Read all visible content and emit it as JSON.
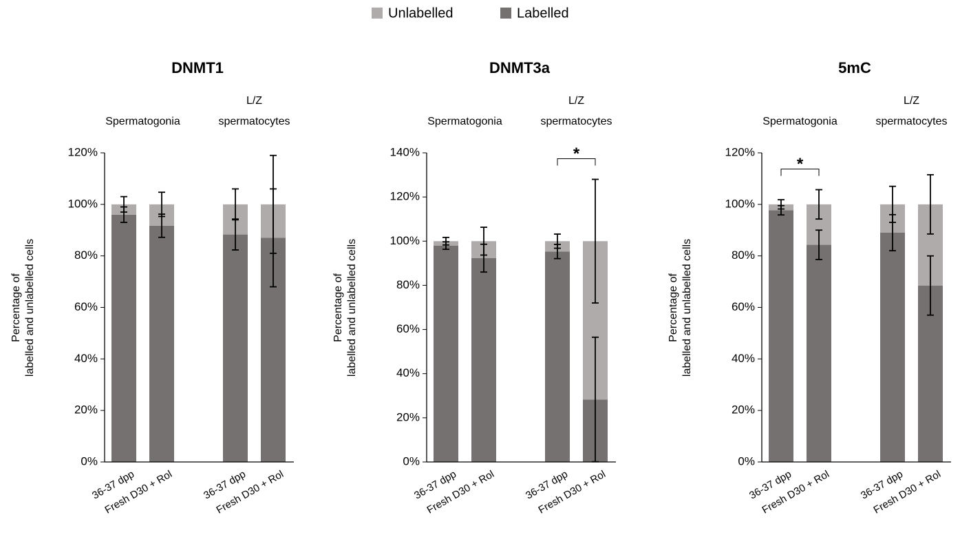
{
  "chart_data": [
    {
      "type": "stacked_bar",
      "title": "DNMT1",
      "y_label": "Percentage of\nlabelled and unlabelled cells",
      "group_labels": [
        "Spermatogonia",
        "L/Z\nspermatocytes"
      ],
      "categories": [
        "36-37 dpp",
        "Fresh D30 + Rol",
        "36-37 dpp",
        "Fresh D30 + Rol"
      ],
      "series": [
        {
          "name": "Labelled",
          "color": "#767171",
          "values": [
            96,
            91.7,
            88.3,
            87
          ],
          "errors": [
            3,
            4.5,
            6,
            19
          ]
        },
        {
          "name": "Unlabelled",
          "color": "#afabab",
          "values": [
            4,
            8.3,
            11.7,
            13
          ],
          "errors": [
            3,
            4.7,
            6,
            19
          ]
        }
      ],
      "significance": [
        null,
        null,
        null,
        null
      ],
      "ylim": [
        0,
        120
      ],
      "yticks": [
        {
          "value": 0,
          "label": "0%"
        },
        {
          "value": 20,
          "label": "20%"
        },
        {
          "value": 40,
          "label": "40%"
        },
        {
          "value": 60,
          "label": "60%"
        },
        {
          "value": 80,
          "label": "80%"
        },
        {
          "value": 100,
          "label": "100%"
        },
        {
          "value": 120,
          "label": "120%"
        }
      ]
    },
    {
      "type": "stacked_bar",
      "title": "DNMT3a",
      "y_label": "Percentage of\nlabelled and unlabelled cells",
      "group_labels": [
        "Spermatogonia",
        "L/Z\nspermatocytes"
      ],
      "categories": [
        "36-37 dpp",
        "Fresh D30 + Rol",
        "36-37 dpp",
        "Fresh D30 + Rol"
      ],
      "series": [
        {
          "name": "Labelled",
          "color": "#767171",
          "values": [
            98,
            92.3,
            95.3,
            28.3
          ],
          "errors": [
            1.7,
            6.3,
            3.2,
            28.2
          ]
        },
        {
          "name": "Unlabelled",
          "color": "#afabab",
          "values": [
            2,
            7.7,
            4.7,
            71.7
          ],
          "errors": [
            1.7,
            6.3,
            3.2,
            28
          ]
        }
      ],
      "significance": [
        null,
        null,
        "*",
        null
      ],
      "ylim": [
        0,
        140
      ],
      "yticks": [
        {
          "value": 0,
          "label": "0%"
        },
        {
          "value": 20,
          "label": "20%"
        },
        {
          "value": 40,
          "label": "40%"
        },
        {
          "value": 60,
          "label": "60%"
        },
        {
          "value": 80,
          "label": "80%"
        },
        {
          "value": 100,
          "label": "100%"
        },
        {
          "value": 120,
          "label": "120%"
        },
        {
          "value": 140,
          "label": "140%"
        }
      ]
    },
    {
      "type": "stacked_bar",
      "title": "5mC",
      "y_label": "Percentage of\nlabelled and unlabelled cells",
      "group_labels": [
        "Spermatogonia",
        "L/Z\nspermatocytes"
      ],
      "categories": [
        "36-37 dpp",
        "Fresh D30 + Rol",
        "36-37 dpp",
        "Fresh D30 + Rol"
      ],
      "series": [
        {
          "name": "Labelled",
          "color": "#767171",
          "values": [
            97.7,
            84.3,
            89,
            68.5
          ],
          "errors": [
            1.8,
            5.7,
            7,
            11.5
          ]
        },
        {
          "name": "Unlabelled",
          "color": "#afabab",
          "values": [
            2.3,
            15.7,
            11,
            31.5
          ],
          "errors": [
            1.8,
            5.7,
            7,
            11.5
          ]
        }
      ],
      "significance": [
        "*",
        null,
        null,
        null
      ],
      "ylim": [
        0,
        120
      ],
      "yticks": [
        {
          "value": 0,
          "label": "0%"
        },
        {
          "value": 20,
          "label": "20%"
        },
        {
          "value": 40,
          "label": "40%"
        },
        {
          "value": 60,
          "label": "60%"
        },
        {
          "value": 80,
          "label": "80%"
        },
        {
          "value": 100,
          "label": "100%"
        },
        {
          "value": 120,
          "label": "120%"
        }
      ]
    }
  ]
}
